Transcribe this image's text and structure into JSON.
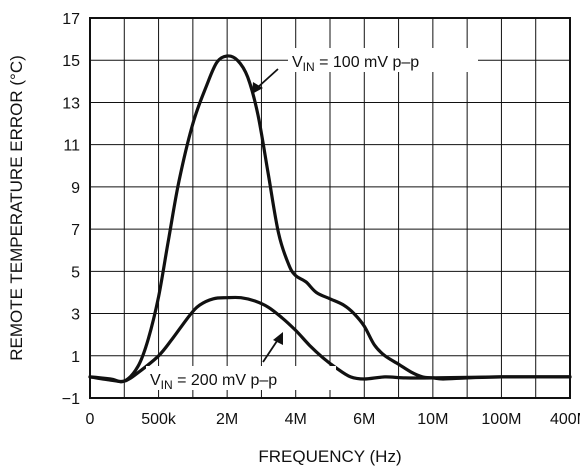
{
  "chart_data": {
    "type": "line",
    "xlabel": "FREQUENCY (Hz)",
    "ylabel": "REMOTE TEMPERATURE ERROR (°C)",
    "x_tick_labels": [
      "0",
      "500k",
      "2M",
      "4M",
      "6M",
      "10M",
      "100M",
      "400M"
    ],
    "y_ticks": [
      -1,
      1,
      3,
      5,
      7,
      9,
      11,
      13,
      15,
      17
    ],
    "ylim": [
      -1,
      17
    ],
    "grid": true,
    "x_scale": "tick-index (tick labels evenly spaced)",
    "series": [
      {
        "annotation_prefix": "V",
        "annotation_subscript": "IN",
        "annotation_suffix": " = 100 mV p–p",
        "points": [
          [
            0,
            0
          ],
          [
            0.3,
            -0.1
          ],
          [
            0.5,
            -0.2
          ],
          [
            0.7,
            0.5
          ],
          [
            0.85,
            1.8
          ],
          [
            1.0,
            3.8
          ],
          [
            1.15,
            6.6
          ],
          [
            1.3,
            9.3
          ],
          [
            1.5,
            12.0
          ],
          [
            1.7,
            13.8
          ],
          [
            1.85,
            14.9
          ],
          [
            2.0,
            15.2
          ],
          [
            2.15,
            15.0
          ],
          [
            2.3,
            14.2
          ],
          [
            2.45,
            12.4
          ],
          [
            2.6,
            9.6
          ],
          [
            2.75,
            6.8
          ],
          [
            2.9,
            5.3
          ],
          [
            3.0,
            4.8
          ],
          [
            3.15,
            4.5
          ],
          [
            3.3,
            4.0
          ],
          [
            3.5,
            3.7
          ],
          [
            3.7,
            3.4
          ],
          [
            3.85,
            3.0
          ],
          [
            4.0,
            2.4
          ],
          [
            4.15,
            1.5
          ],
          [
            4.3,
            1.0
          ],
          [
            4.5,
            0.6
          ],
          [
            4.7,
            0.2
          ],
          [
            4.85,
            0.0
          ],
          [
            5.0,
            -0.05
          ],
          [
            5.15,
            -0.1
          ],
          [
            5.5,
            -0.05
          ],
          [
            6.0,
            0.0
          ],
          [
            7.0,
            0.0
          ]
        ]
      },
      {
        "annotation_prefix": "V",
        "annotation_subscript": "IN",
        "annotation_suffix": " = 200 mV p–p",
        "points": [
          [
            0,
            0
          ],
          [
            0.3,
            -0.15
          ],
          [
            0.5,
            -0.2
          ],
          [
            0.7,
            0.2
          ],
          [
            1.0,
            1.0
          ],
          [
            1.2,
            1.8
          ],
          [
            1.45,
            2.9
          ],
          [
            1.6,
            3.4
          ],
          [
            1.8,
            3.7
          ],
          [
            2.0,
            3.75
          ],
          [
            2.2,
            3.75
          ],
          [
            2.4,
            3.6
          ],
          [
            2.6,
            3.3
          ],
          [
            2.8,
            2.8
          ],
          [
            3.0,
            2.2
          ],
          [
            3.2,
            1.5
          ],
          [
            3.4,
            0.9
          ],
          [
            3.6,
            0.4
          ],
          [
            3.8,
            0.0
          ],
          [
            4.0,
            -0.1
          ],
          [
            4.3,
            0.0
          ],
          [
            4.6,
            -0.05
          ],
          [
            5.0,
            -0.05
          ],
          [
            6.0,
            0.0
          ],
          [
            7.0,
            0.0
          ]
        ]
      }
    ]
  }
}
